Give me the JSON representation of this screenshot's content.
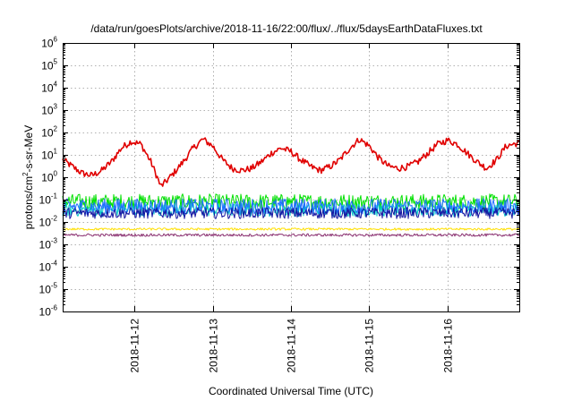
{
  "chart_data": {
    "type": "line",
    "title": "/data/run/goesPlots/archive/2018-11-16/22:00/flux/../flux/5daysEarthDataFluxes.txt",
    "xlabel": "Coordinated Universal Time (UTC)",
    "ylabel": "protons/cm²-s-sr-MeV",
    "ylabel_parts": {
      "base": "protons/cm",
      "sup": "2",
      "rest": "-s-sr-MeV"
    },
    "yscale": "log",
    "ylim": [
      1e-06,
      1000000.0
    ],
    "xlim": [
      "2018-11-11T02:00",
      "2018-11-16T22:00"
    ],
    "grid": true,
    "y_ticks": [
      {
        "value": 1e-06,
        "base": "10",
        "exp": "-6"
      },
      {
        "value": 1e-05,
        "base": "10",
        "exp": "-5"
      },
      {
        "value": 0.0001,
        "base": "10",
        "exp": "-4"
      },
      {
        "value": 0.001,
        "base": "10",
        "exp": "-3"
      },
      {
        "value": 0.01,
        "base": "10",
        "exp": "-2"
      },
      {
        "value": 0.1,
        "base": "10",
        "exp": "-1"
      },
      {
        "value": 1.0,
        "base": "10",
        "exp": "0"
      },
      {
        "value": 10.0,
        "base": "10",
        "exp": "1"
      },
      {
        "value": 100.0,
        "base": "10",
        "exp": "2"
      },
      {
        "value": 1000.0,
        "base": "10",
        "exp": "3"
      },
      {
        "value": 10000.0,
        "base": "10",
        "exp": "4"
      },
      {
        "value": 100000.0,
        "base": "10",
        "exp": "5"
      },
      {
        "value": 1000000.0,
        "base": "10",
        "exp": "6"
      }
    ],
    "x_ticks": [
      {
        "value": "2018-11-12T00:00",
        "label": "2018-11-12"
      },
      {
        "value": "2018-11-13T00:00",
        "label": "2018-11-13"
      },
      {
        "value": "2018-11-14T00:00",
        "label": "2018-11-14"
      },
      {
        "value": "2018-11-15T00:00",
        "label": "2018-11-15"
      },
      {
        "value": "2018-11-16T00:00",
        "label": "2018-11-16"
      }
    ],
    "series": [
      {
        "color": "#e00000",
        "noise": 0.15,
        "x": [
          "2018-11-11T02:00",
          "2018-11-11T05:00",
          "2018-11-11T08:00",
          "2018-11-11T11:00",
          "2018-11-11T14:00",
          "2018-11-11T17:00",
          "2018-11-11T20:00",
          "2018-11-11T23:00",
          "2018-11-12T02:00",
          "2018-11-12T05:00",
          "2018-11-12T07:00",
          "2018-11-12T08:00",
          "2018-11-12T09:00",
          "2018-11-12T12:00",
          "2018-11-12T15:00",
          "2018-11-12T18:00",
          "2018-11-12T21:00",
          "2018-11-13T00:00",
          "2018-11-13T03:00",
          "2018-11-13T06:00",
          "2018-11-13T09:00",
          "2018-11-13T12:00",
          "2018-11-13T15:00",
          "2018-11-13T18:00",
          "2018-11-13T21:00",
          "2018-11-14T00:00",
          "2018-11-14T03:00",
          "2018-11-14T06:00",
          "2018-11-14T09:00",
          "2018-11-14T12:00",
          "2018-11-14T15:00",
          "2018-11-14T18:00",
          "2018-11-14T21:00",
          "2018-11-15T00:00",
          "2018-11-15T03:00",
          "2018-11-15T06:00",
          "2018-11-15T09:00",
          "2018-11-15T12:00",
          "2018-11-15T15:00",
          "2018-11-15T18:00",
          "2018-11-15T21:00",
          "2018-11-16T00:00",
          "2018-11-16T03:00",
          "2018-11-16T06:00",
          "2018-11-16T09:00",
          "2018-11-16T12:00",
          "2018-11-16T15:00",
          "2018-11-16T18:00",
          "2018-11-16T22:00"
        ],
        "values": [
          6,
          3,
          1.5,
          1.2,
          2,
          5,
          20,
          40,
          30,
          5,
          1,
          0.4,
          0.5,
          1.5,
          5,
          20,
          50,
          25,
          6,
          2.5,
          2,
          2.5,
          5,
          12,
          20,
          14,
          6,
          3,
          2,
          3,
          6,
          20,
          50,
          25,
          7,
          3,
          2.5,
          3,
          5,
          12,
          30,
          45,
          30,
          12,
          5,
          2.5,
          6,
          25,
          35
        ]
      },
      {
        "color": "#00e000",
        "noise": 0.35,
        "x": [
          "2018-11-11T02:00",
          "2018-11-16T22:00"
        ],
        "values": [
          0.08,
          0.08
        ]
      },
      {
        "color": "#00c8c8",
        "noise": 0.3,
        "x": [
          "2018-11-11T02:00",
          "2018-11-16T22:00"
        ],
        "values": [
          0.035,
          0.035
        ]
      },
      {
        "color": "#1e6eff",
        "noise": 0.35,
        "x": [
          "2018-11-11T02:00",
          "2018-11-16T22:00"
        ],
        "values": [
          0.05,
          0.05
        ]
      },
      {
        "color": "#1414a0",
        "noise": 0.25,
        "x": [
          "2018-11-11T02:00",
          "2018-11-16T22:00"
        ],
        "values": [
          0.025,
          0.025
        ]
      },
      {
        "color": "#ffe000",
        "noise": 0.05,
        "x": [
          "2018-11-11T02:00",
          "2018-11-16T22:00"
        ],
        "values": [
          0.0048,
          0.0048
        ]
      },
      {
        "color": "#8a3070",
        "noise": 0.06,
        "x": [
          "2018-11-11T02:00",
          "2018-11-16T22:00"
        ],
        "values": [
          0.0026,
          0.0026
        ]
      }
    ]
  }
}
